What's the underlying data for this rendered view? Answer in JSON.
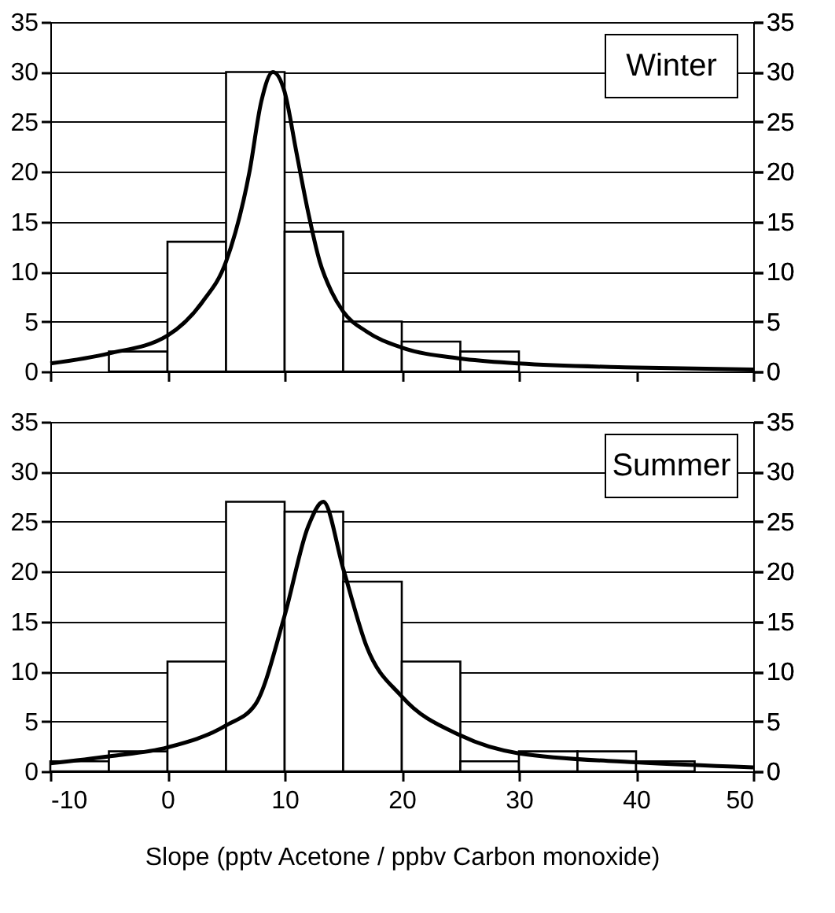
{
  "chart_data": [
    {
      "type": "histogram",
      "bins": [
        -10,
        -5,
        0,
        5,
        10,
        15,
        20,
        25,
        30,
        35,
        40,
        45,
        50
      ],
      "values": [
        null,
        2,
        13,
        30,
        14,
        5,
        3,
        2,
        null,
        null,
        null,
        null
      ],
      "color": "#ffffff",
      "series": [
        {
          "type": "line",
          "color": "#000000",
          "x": [
            -10,
            -5,
            0,
            3,
            5,
            7,
            8,
            9,
            10,
            11,
            12,
            13,
            14,
            15,
            17,
            20,
            25,
            30,
            40,
            50
          ],
          "values": [
            0.8,
            1.8,
            3.6,
            7,
            11,
            20,
            27,
            30,
            28,
            22,
            16,
            11,
            8,
            6,
            4,
            2.4,
            1.3,
            0.8,
            0.4,
            0.2
          ]
        }
      ],
      "xlim": [
        -10,
        50
      ],
      "xticks": [
        {
          "value": -10,
          "label": null
        },
        {
          "value": 0,
          "label": null
        },
        {
          "value": 10,
          "label": null
        },
        {
          "value": 20,
          "label": null
        },
        {
          "value": 30,
          "label": null
        },
        {
          "value": 40,
          "label": null
        },
        {
          "value": 50,
          "label": null
        }
      ],
      "ylim": [
        0,
        35
      ],
      "yticks": [
        0,
        5,
        10,
        15,
        20,
        25,
        30,
        35
      ],
      "y2lim": [
        0,
        35
      ],
      "y2ticks": [
        0,
        5,
        10,
        15,
        20,
        25,
        30,
        35
      ],
      "annotations": [
        "Winter"
      ],
      "grid": "y",
      "tick_labels": "y"
    },
    {
      "type": "histogram",
      "bins": [
        -10,
        -5,
        0,
        5,
        10,
        15,
        20,
        25,
        30,
        35,
        40,
        45,
        50
      ],
      "values": [
        1,
        2,
        11,
        27,
        26,
        19,
        11,
        1,
        2,
        2,
        1,
        null
      ],
      "color": "#ffffff",
      "series": [
        {
          "type": "line",
          "color": "#000000",
          "x": [
            -10,
            -5,
            0,
            5,
            7.5,
            10,
            12,
            13.3,
            15,
            17,
            20,
            25,
            30,
            40,
            50
          ],
          "values": [
            0.8,
            1.5,
            2.4,
            4.6,
            6.7,
            15.6,
            24.5,
            27,
            20.3,
            12.5,
            7.5,
            3.6,
            1.8,
            0.9,
            0.4
          ]
        }
      ],
      "xlim": [
        -10,
        50
      ],
      "xticks": [
        -10,
        0,
        10,
        20,
        30,
        40,
        50
      ],
      "xlabel": "Slope (pptv Acetone / ppbv Carbon monoxide)",
      "ylim": [
        0,
        35
      ],
      "yticks": [
        0,
        5,
        10,
        15,
        20,
        25,
        30,
        35
      ],
      "y2lim": [
        0,
        35
      ],
      "y2ticks": [
        0,
        5,
        10,
        15,
        20,
        25,
        30,
        35
      ],
      "annotations": [
        "Summer"
      ],
      "grid": "y"
    }
  ]
}
